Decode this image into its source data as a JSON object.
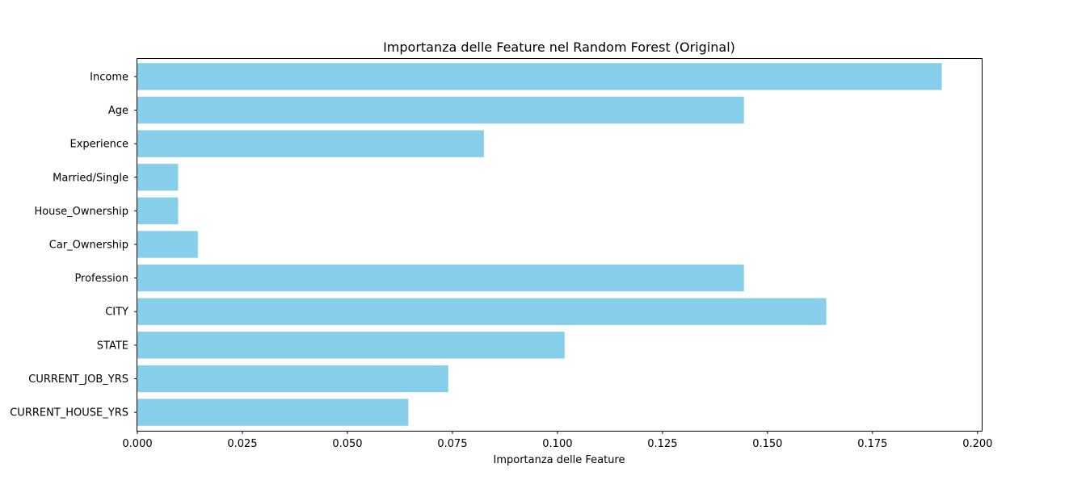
{
  "chart_data": {
    "type": "bar",
    "orientation": "horizontal",
    "title": "Importanza delle Feature nel Random Forest (Original)",
    "xlabel": "Importanza delle Feature",
    "ylabel": "",
    "categories": [
      "Income",
      "Age",
      "Experience",
      "Married/Single",
      "House_Ownership",
      "Car_Ownership",
      "Profession",
      "CITY",
      "STATE",
      "CURRENT_JOB_YRS",
      "CURRENT_HOUSE_YRS"
    ],
    "values": [
      0.1915,
      0.1444,
      0.0825,
      0.0097,
      0.0097,
      0.0144,
      0.1444,
      0.164,
      0.1017,
      0.074,
      0.0645
    ],
    "xlim": [
      0.0,
      0.201
    ],
    "xticks": [
      "0.000",
      "0.025",
      "0.050",
      "0.075",
      "0.100",
      "0.125",
      "0.150",
      "0.175",
      "0.200"
    ],
    "grid": false,
    "bar_color": "#87CEEB"
  }
}
